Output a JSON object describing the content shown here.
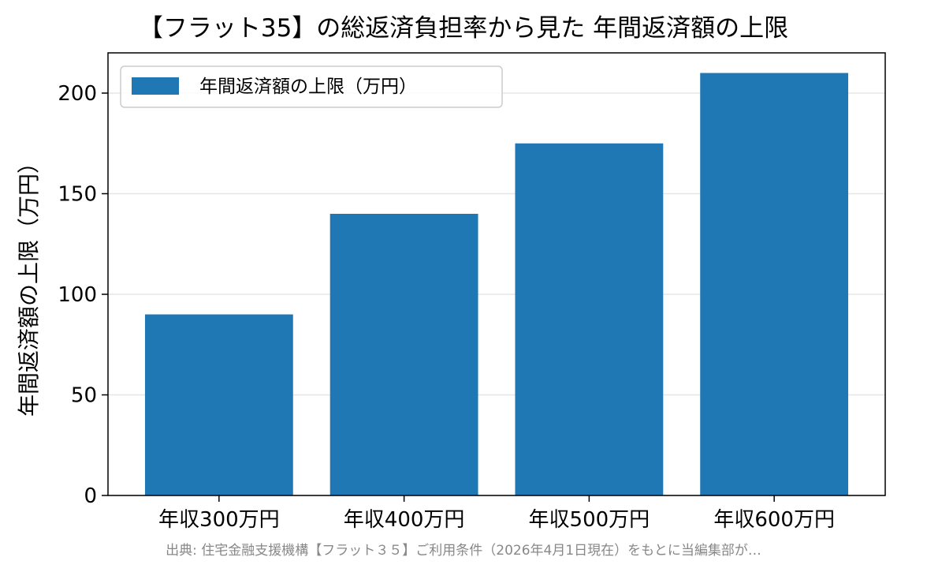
{
  "chart_data": {
    "type": "bar",
    "title": "【フラット35】の総返済負担率から見た 年間返済額の上限",
    "xlabel": "",
    "ylabel": "年間返済額の上限（万円）",
    "categories": [
      "年収300万円",
      "年収400万円",
      "年収500万円",
      "年収600万円"
    ],
    "series": [
      {
        "name": "年間返済額の上限（万円）",
        "values": [
          90,
          140,
          175,
          210
        ]
      }
    ],
    "ylim": [
      0,
      220
    ],
    "yticks": [
      0,
      50,
      100,
      150,
      200
    ],
    "grid": "horizontal",
    "legend": "top-left",
    "colors": {
      "bar": "#1f77b4",
      "grid": "#e6e6e6",
      "axis": "#000000",
      "source": "#888888"
    },
    "source": "出典: 住宅金融支援機構【フラット３５】ご利用条件（2026年4月1日現在）をもとに当編集部が…"
  }
}
